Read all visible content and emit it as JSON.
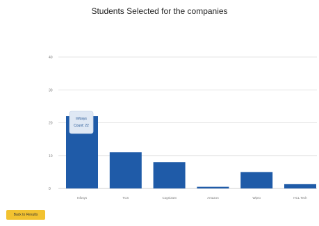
{
  "page": {
    "title": "Students Selected for the companies"
  },
  "actions": {
    "back_label": "Back to Results"
  },
  "chart_data": {
    "type": "bar",
    "title": "Students Selected for the companies",
    "categories": [
      "Infosys",
      "TCS",
      "Cognizant",
      "Amazon",
      "Wipro",
      "HCL Tech"
    ],
    "values": [
      22,
      11,
      8,
      0.5,
      5,
      1.3
    ],
    "ylim": [
      0,
      40
    ],
    "yticks": [
      0,
      10,
      20,
      30,
      40
    ],
    "grid": true,
    "color": "#1f5ba8",
    "tooltip": {
      "title": "Infosys",
      "text": "Count: 22"
    }
  }
}
